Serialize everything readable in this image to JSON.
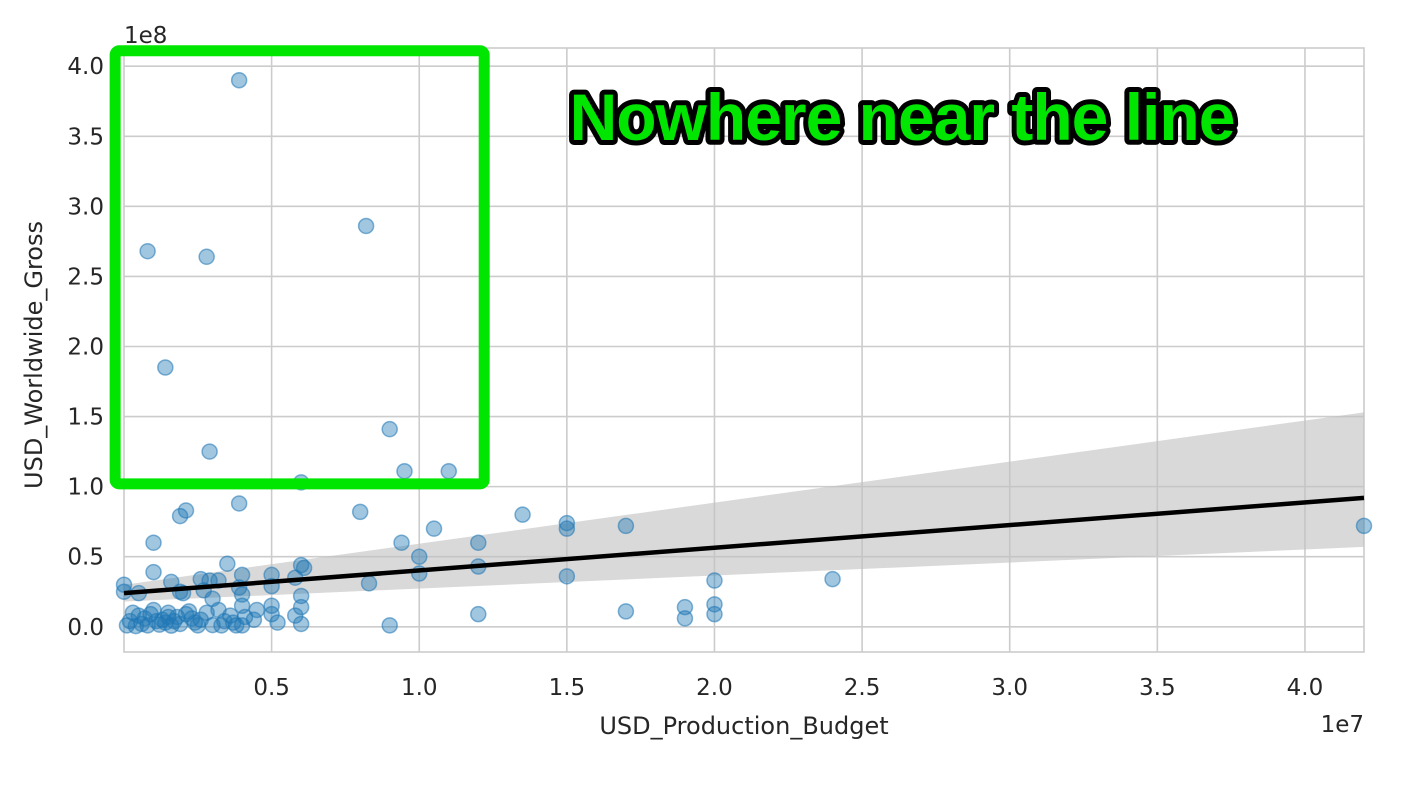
{
  "chart_data": {
    "type": "scatter",
    "title": "",
    "xlabel": "USD_Production_Budget",
    "ylabel": "USD_Worldwide_Gross",
    "x_offset_label": "1e7",
    "y_offset_label": "1e8",
    "xlim": [
      0,
      42000000
    ],
    "ylim": [
      -18000000,
      413000000
    ],
    "x_ticks": [
      5000000,
      10000000,
      15000000,
      20000000,
      25000000,
      30000000,
      35000000,
      40000000
    ],
    "x_tick_labels": [
      "0.5",
      "1.0",
      "1.5",
      "2.0",
      "2.5",
      "3.0",
      "3.5",
      "4.0"
    ],
    "y_ticks": [
      0,
      50000000,
      100000000,
      150000000,
      200000000,
      250000000,
      300000000,
      350000000,
      400000000
    ],
    "y_tick_labels": [
      "0.0",
      "0.5",
      "1.0",
      "1.5",
      "2.0",
      "2.5",
      "3.0",
      "3.5",
      "4.0"
    ],
    "grid": true,
    "point_color": "#1f77b4",
    "line_color": "#000000",
    "band_color": "#bfbfbf",
    "regression": {
      "x": [
        0,
        42000000
      ],
      "y": [
        24000000,
        92000000
      ],
      "ci_lower": [
        18000000,
        57000000
      ],
      "ci_upper": [
        30000000,
        153000000
      ]
    },
    "series": [
      {
        "points": [
          [
            3900000,
            390000000
          ],
          [
            800000,
            268000000
          ],
          [
            2800000,
            264000000
          ],
          [
            8200000,
            286000000
          ],
          [
            1400000,
            185000000
          ],
          [
            9000000,
            141000000
          ],
          [
            2900000,
            125000000
          ],
          [
            9500000,
            111000000
          ],
          [
            11000000,
            111000000
          ],
          [
            6000000,
            103000000
          ],
          [
            3900000,
            88000000
          ],
          [
            2100000,
            83000000
          ],
          [
            1900000,
            79000000
          ],
          [
            8000000,
            82000000
          ],
          [
            10500000,
            70000000
          ],
          [
            13500000,
            80000000
          ],
          [
            15000000,
            74000000
          ],
          [
            15000000,
            70000000
          ],
          [
            17000000,
            72000000
          ],
          [
            42000000,
            72000000
          ],
          [
            1000000,
            60000000
          ],
          [
            9400000,
            60000000
          ],
          [
            12000000,
            60000000
          ],
          [
            10000000,
            50000000
          ],
          [
            3500000,
            45000000
          ],
          [
            6000000,
            44000000
          ],
          [
            6100000,
            42000000
          ],
          [
            12000000,
            43000000
          ],
          [
            1000000,
            39000000
          ],
          [
            4000000,
            37000000
          ],
          [
            5000000,
            37000000
          ],
          [
            10000000,
            38000000
          ],
          [
            15000000,
            36000000
          ],
          [
            24000000,
            34000000
          ],
          [
            20000000,
            33000000
          ],
          [
            2600000,
            34000000
          ],
          [
            2900000,
            33000000
          ],
          [
            3200000,
            33000000
          ],
          [
            5800000,
            35000000
          ],
          [
            1600000,
            32000000
          ],
          [
            8300000,
            31000000
          ],
          [
            5000000,
            29000000
          ],
          [
            0,
            30000000
          ],
          [
            0,
            25000000
          ],
          [
            3900000,
            28000000
          ],
          [
            1900000,
            25000000
          ],
          [
            2700000,
            26000000
          ],
          [
            500000,
            24000000
          ],
          [
            4000000,
            23000000
          ],
          [
            6000000,
            22000000
          ],
          [
            2000000,
            24000000
          ],
          [
            3000000,
            20000000
          ],
          [
            4000000,
            15000000
          ],
          [
            5000000,
            15000000
          ],
          [
            6000000,
            14000000
          ],
          [
            19000000,
            14000000
          ],
          [
            20000000,
            16000000
          ],
          [
            17000000,
            11000000
          ],
          [
            1000000,
            12000000
          ],
          [
            2200000,
            11000000
          ],
          [
            3200000,
            12000000
          ],
          [
            4500000,
            12000000
          ],
          [
            1500000,
            10000000
          ],
          [
            2800000,
            10000000
          ],
          [
            12000000,
            9000000
          ],
          [
            20000000,
            9000000
          ],
          [
            5800000,
            8000000
          ],
          [
            19000000,
            6000000
          ],
          [
            500000,
            8000000
          ],
          [
            1800000,
            7000000
          ],
          [
            3600000,
            8000000
          ],
          [
            4400000,
            5000000
          ],
          [
            5000000,
            9000000
          ],
          [
            200000,
            4000000
          ],
          [
            1300000,
            5000000
          ],
          [
            2600000,
            5000000
          ],
          [
            5200000,
            3000000
          ],
          [
            6000000,
            2000000
          ],
          [
            9000000,
            1000000
          ],
          [
            100000,
            1000000
          ],
          [
            400000,
            500000
          ],
          [
            800000,
            1000000
          ],
          [
            1200000,
            1500000
          ],
          [
            1600000,
            800000
          ],
          [
            1900000,
            2000000
          ],
          [
            2500000,
            1000000
          ],
          [
            3000000,
            1200000
          ],
          [
            3300000,
            1000000
          ],
          [
            3800000,
            1000000
          ],
          [
            4000000,
            1000000
          ],
          [
            700000,
            6000000
          ],
          [
            1100000,
            4000000
          ],
          [
            1400000,
            3000000
          ],
          [
            2300000,
            6000000
          ],
          [
            3400000,
            4000000
          ],
          [
            300000,
            10000000
          ],
          [
            900000,
            9000000
          ],
          [
            1700000,
            4000000
          ],
          [
            2100000,
            9000000
          ],
          [
            4100000,
            7000000
          ],
          [
            600000,
            2000000
          ],
          [
            1500000,
            7000000
          ],
          [
            2400000,
            3000000
          ],
          [
            3700000,
            3000000
          ]
        ]
      }
    ],
    "annotations": [
      {
        "text": "Nowhere near the line",
        "color": "#00e600"
      }
    ],
    "highlight_box": {
      "color": "#00e600",
      "x_range": [
        -300000,
        12200000
      ],
      "y_range": [
        102000000,
        411000000
      ]
    }
  }
}
